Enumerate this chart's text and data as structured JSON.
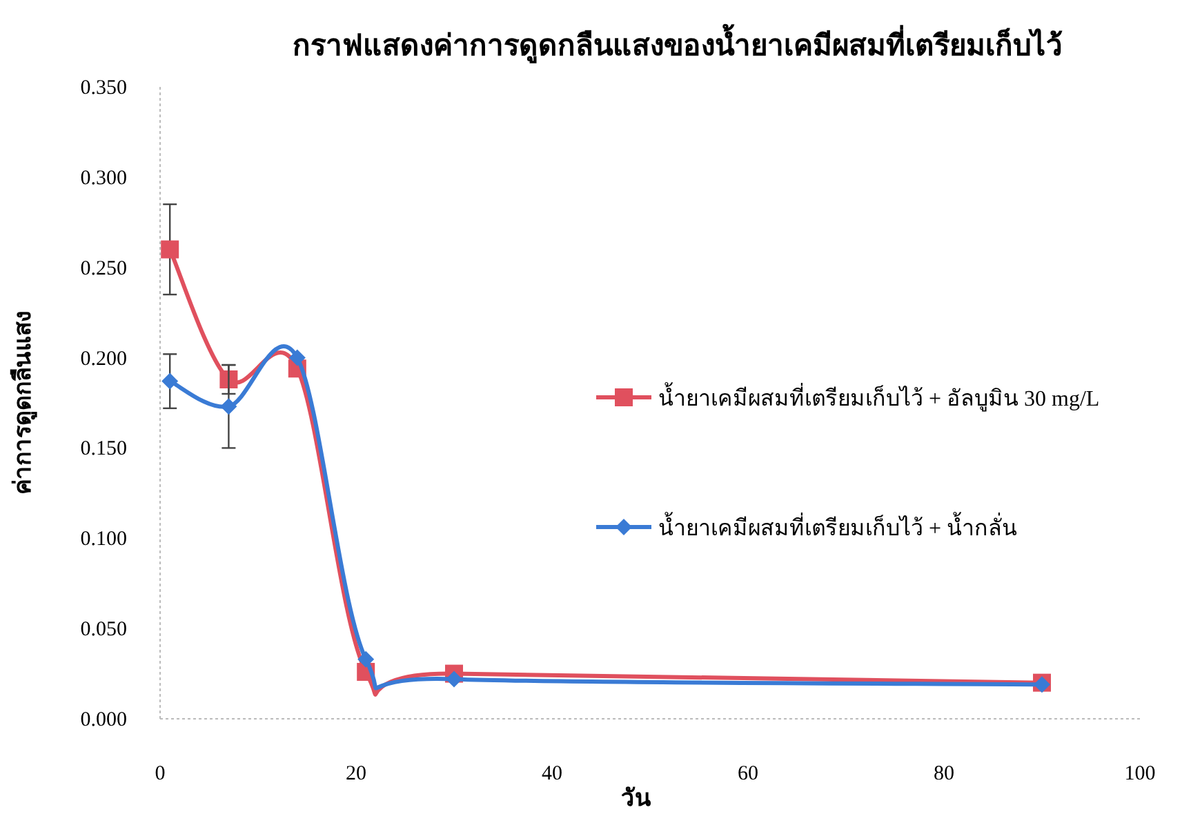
{
  "chart_data": {
    "type": "line",
    "title": "กราฟแสดงค่าการดูดกลืนแสงของน้ำยาเคมีผสมที่เตรียมเก็บไว้",
    "xlabel": "วัน",
    "ylabel": "ค่าการดูดกลืนแสง",
    "x": [
      1,
      7,
      14,
      21,
      30,
      90
    ],
    "series": [
      {
        "name": "น้ำยาเคมีผสมที่เตรียมเก็บไว้ + อัลบูมิน 30 mg/L",
        "color": "#e0505e",
        "marker": "square",
        "values": [
          0.26,
          0.188,
          0.194,
          0.026,
          0.025,
          0.02
        ],
        "errors": [
          0.025,
          0.008,
          null,
          null,
          null,
          null
        ]
      },
      {
        "name": "น้ำยาเคมีผสมที่เตรียมเก็บไว้ + น้ำกลั่น",
        "color": "#3a7bd5",
        "marker": "diamond",
        "values": [
          0.187,
          0.173,
          0.2,
          0.033,
          0.022,
          0.019
        ],
        "errors": [
          0.015,
          0.023,
          null,
          null,
          null,
          null
        ]
      }
    ],
    "xlim": [
      0,
      100
    ],
    "xticks": [
      0,
      20,
      40,
      60,
      80,
      100
    ],
    "ylim": [
      0,
      0.35
    ],
    "yticks": [
      {
        "value": 0,
        "label": "0.000"
      },
      {
        "value": 0.05,
        "label": "0.050"
      },
      {
        "value": 0.1,
        "label": "0.100"
      },
      {
        "value": 0.15,
        "label": "0.150"
      },
      {
        "value": 0.2,
        "label": "0.200"
      },
      {
        "value": 0.25,
        "label": "0.250"
      },
      {
        "value": 0.3,
        "label": "0.300"
      },
      {
        "value": 0.35,
        "label": "0.350"
      }
    ],
    "grid": false,
    "legend": "right",
    "line_style": "solid"
  }
}
